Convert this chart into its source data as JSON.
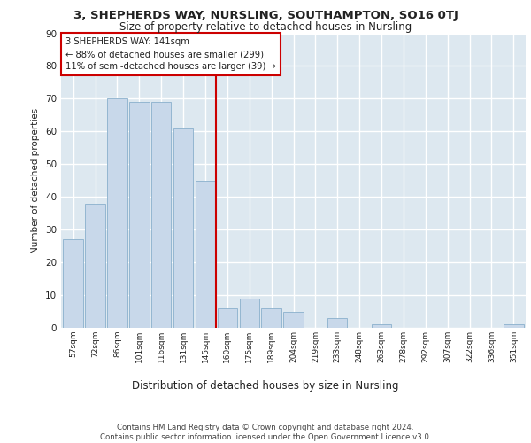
{
  "title1": "3, SHEPHERDS WAY, NURSLING, SOUTHAMPTON, SO16 0TJ",
  "title2": "Size of property relative to detached houses in Nursling",
  "xlabel": "Distribution of detached houses by size in Nursling",
  "ylabel": "Number of detached properties",
  "categories": [
    "57sqm",
    "72sqm",
    "86sqm",
    "101sqm",
    "116sqm",
    "131sqm",
    "145sqm",
    "160sqm",
    "175sqm",
    "189sqm",
    "204sqm",
    "219sqm",
    "233sqm",
    "248sqm",
    "263sqm",
    "278sqm",
    "292sqm",
    "307sqm",
    "322sqm",
    "336sqm",
    "351sqm"
  ],
  "values": [
    27,
    38,
    70,
    69,
    69,
    61,
    45,
    6,
    9,
    6,
    5,
    0,
    3,
    0,
    1,
    0,
    0,
    0,
    0,
    0,
    1
  ],
  "bar_color": "#c8d8ea",
  "bar_edge_color": "#8ab0cc",
  "vline_x": 6.5,
  "vline_color": "#cc0000",
  "annotation_text": "3 SHEPHERDS WAY: 141sqm\n← 88% of detached houses are smaller (299)\n11% of semi-detached houses are larger (39) →",
  "annotation_box_color": "#ffffff",
  "annotation_box_edge": "#cc0000",
  "ylim": [
    0,
    90
  ],
  "yticks": [
    0,
    10,
    20,
    30,
    40,
    50,
    60,
    70,
    80,
    90
  ],
  "background_color": "#dde8f0",
  "fig_color": "#ffffff",
  "grid_color": "#ffffff",
  "footer": "Contains HM Land Registry data © Crown copyright and database right 2024.\nContains public sector information licensed under the Open Government Licence v3.0."
}
